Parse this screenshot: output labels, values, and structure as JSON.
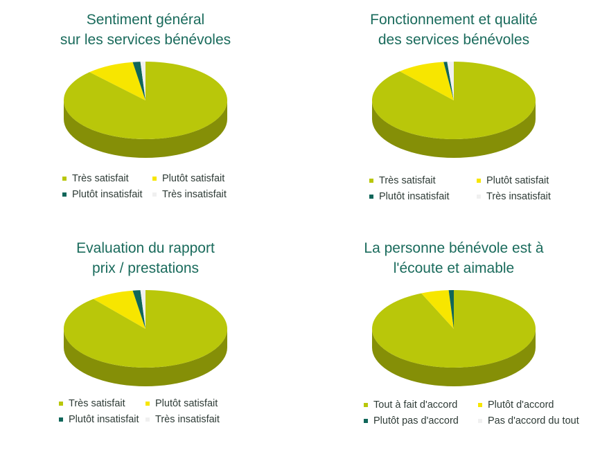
{
  "chart_data": [
    {
      "type": "pie",
      "title_lines": [
        "Sentiment général",
        "sur les services bénévoles"
      ],
      "legend": [
        "Très satisfait",
        "Plutôt satisfait",
        "Plutôt insatisfait",
        "Très insatisfait"
      ],
      "values": [
        88,
        9.5,
        1.5,
        1.0
      ],
      "colors": [
        "#b9c70a",
        "#f7e600",
        "#10665a",
        "#f0f0f0"
      ]
    },
    {
      "type": "pie",
      "title_lines": [
        "Fonctionnement et qualité",
        "des services bénévoles"
      ],
      "legend": [
        "Très satisfait",
        "Plutôt satisfait",
        "Plutôt insatisfait",
        "Très insatisfait"
      ],
      "values": [
        88.5,
        9.5,
        0.7,
        1.3
      ],
      "colors": [
        "#b9c70a",
        "#f7e600",
        "#10665a",
        "#f0f0f0"
      ]
    },
    {
      "type": "pie",
      "title_lines": [
        "Evaluation du rapport",
        "prix / prestations"
      ],
      "legend": [
        "Très satisfait",
        "Plutôt satisfait",
        "Plutôt insatisfait",
        "Très insatisfait"
      ],
      "values": [
        89,
        8.5,
        1.5,
        1.0
      ],
      "colors": [
        "#b9c70a",
        "#f7e600",
        "#10665a",
        "#f0f0f0"
      ]
    },
    {
      "type": "pie",
      "title_lines": [
        "La personne bénévole est à",
        "l'écoute et aimable"
      ],
      "legend": [
        "Tout à fait d'accord",
        "Plutôt d'accord",
        "Plutôt pas d'accord",
        "Pas d'accord du tout"
      ],
      "values": [
        93.5,
        5.5,
        1.0,
        0
      ],
      "colors": [
        "#b9c70a",
        "#f7e600",
        "#10665a",
        "#f0f0f0"
      ]
    }
  ]
}
